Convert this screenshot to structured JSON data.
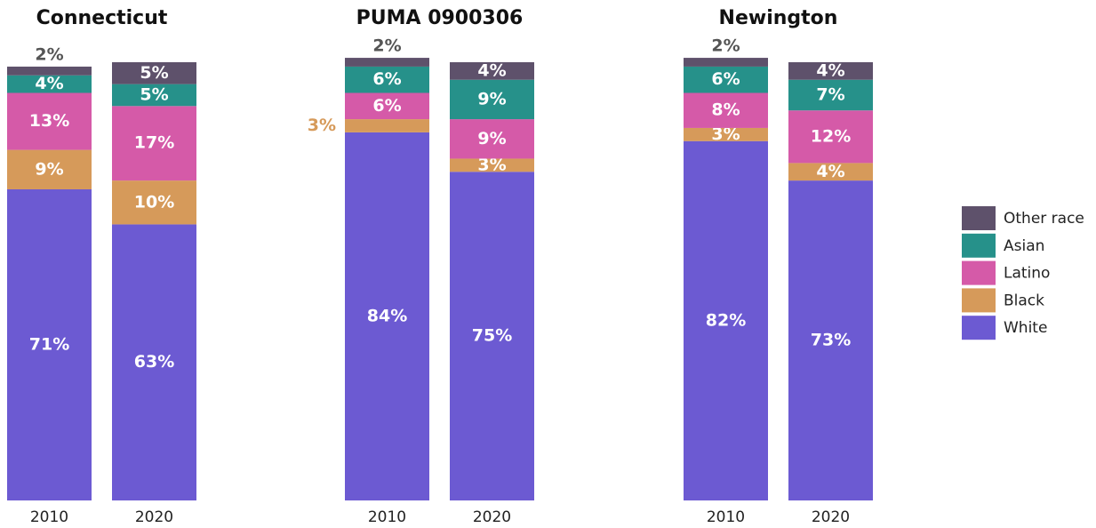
{
  "chart_data": [
    {
      "type": "bar",
      "stacked": true,
      "title": "Connecticut",
      "categories": [
        "2010",
        "2020"
      ],
      "ylim": [
        0,
        100
      ],
      "series": [
        {
          "name": "White",
          "color": "#6c5ad2",
          "values": [
            71,
            63
          ],
          "value_labels": [
            "71%",
            "63%"
          ]
        },
        {
          "name": "Black",
          "color": "#d69a5a",
          "values": [
            9,
            10
          ],
          "value_labels": [
            "9%",
            "10%"
          ]
        },
        {
          "name": "Latino",
          "color": "#d55aa8",
          "values": [
            13,
            17
          ],
          "value_labels": [
            "13%",
            "17%"
          ]
        },
        {
          "name": "Asian",
          "color": "#26918a",
          "values": [
            4,
            5
          ],
          "value_labels": [
            "4%",
            "5%"
          ]
        },
        {
          "name": "Other race",
          "color": "#5e516b",
          "values": [
            2,
            5
          ],
          "value_labels": [
            "2%",
            "5%"
          ]
        }
      ]
    },
    {
      "type": "bar",
      "stacked": true,
      "title": "PUMA 0900306",
      "categories": [
        "2010",
        "2020"
      ],
      "ylim": [
        0,
        100
      ],
      "series": [
        {
          "color": "#6c5ad2",
          "values": [
            84,
            75
          ],
          "value_labels": [
            "84%",
            "75%"
          ]
        },
        {
          "color": "#d69a5a",
          "values": [
            3,
            3
          ],
          "value_labels": [
            "3%",
            "3%"
          ]
        },
        {
          "color": "#d55aa8",
          "values": [
            6,
            9
          ],
          "value_labels": [
            "6%",
            "9%"
          ]
        },
        {
          "color": "#26918a",
          "values": [
            6,
            9
          ],
          "value_labels": [
            "6%",
            "9%"
          ]
        },
        {
          "color": "#5e516b",
          "values": [
            2,
            4
          ],
          "value_labels": [
            "2%",
            "4%"
          ]
        }
      ]
    },
    {
      "type": "bar",
      "stacked": true,
      "title": "Newington",
      "categories": [
        "2010",
        "2020"
      ],
      "ylim": [
        0,
        100
      ],
      "series": [
        {
          "color": "#6c5ad2",
          "values": [
            82,
            73
          ],
          "value_labels": [
            "82%",
            "73%"
          ]
        },
        {
          "color": "#d69a5a",
          "values": [
            3,
            4
          ],
          "value_labels": [
            "3%",
            "4%"
          ]
        },
        {
          "color": "#d55aa8",
          "values": [
            8,
            12
          ],
          "value_labels": [
            "8%",
            "12%"
          ]
        },
        {
          "color": "#26918a",
          "values": [
            6,
            7
          ],
          "value_labels": [
            "6%",
            "7%"
          ]
        },
        {
          "color": "#5e516b",
          "values": [
            2,
            4
          ],
          "value_labels": [
            "2%",
            "4%"
          ]
        }
      ]
    }
  ]
}
